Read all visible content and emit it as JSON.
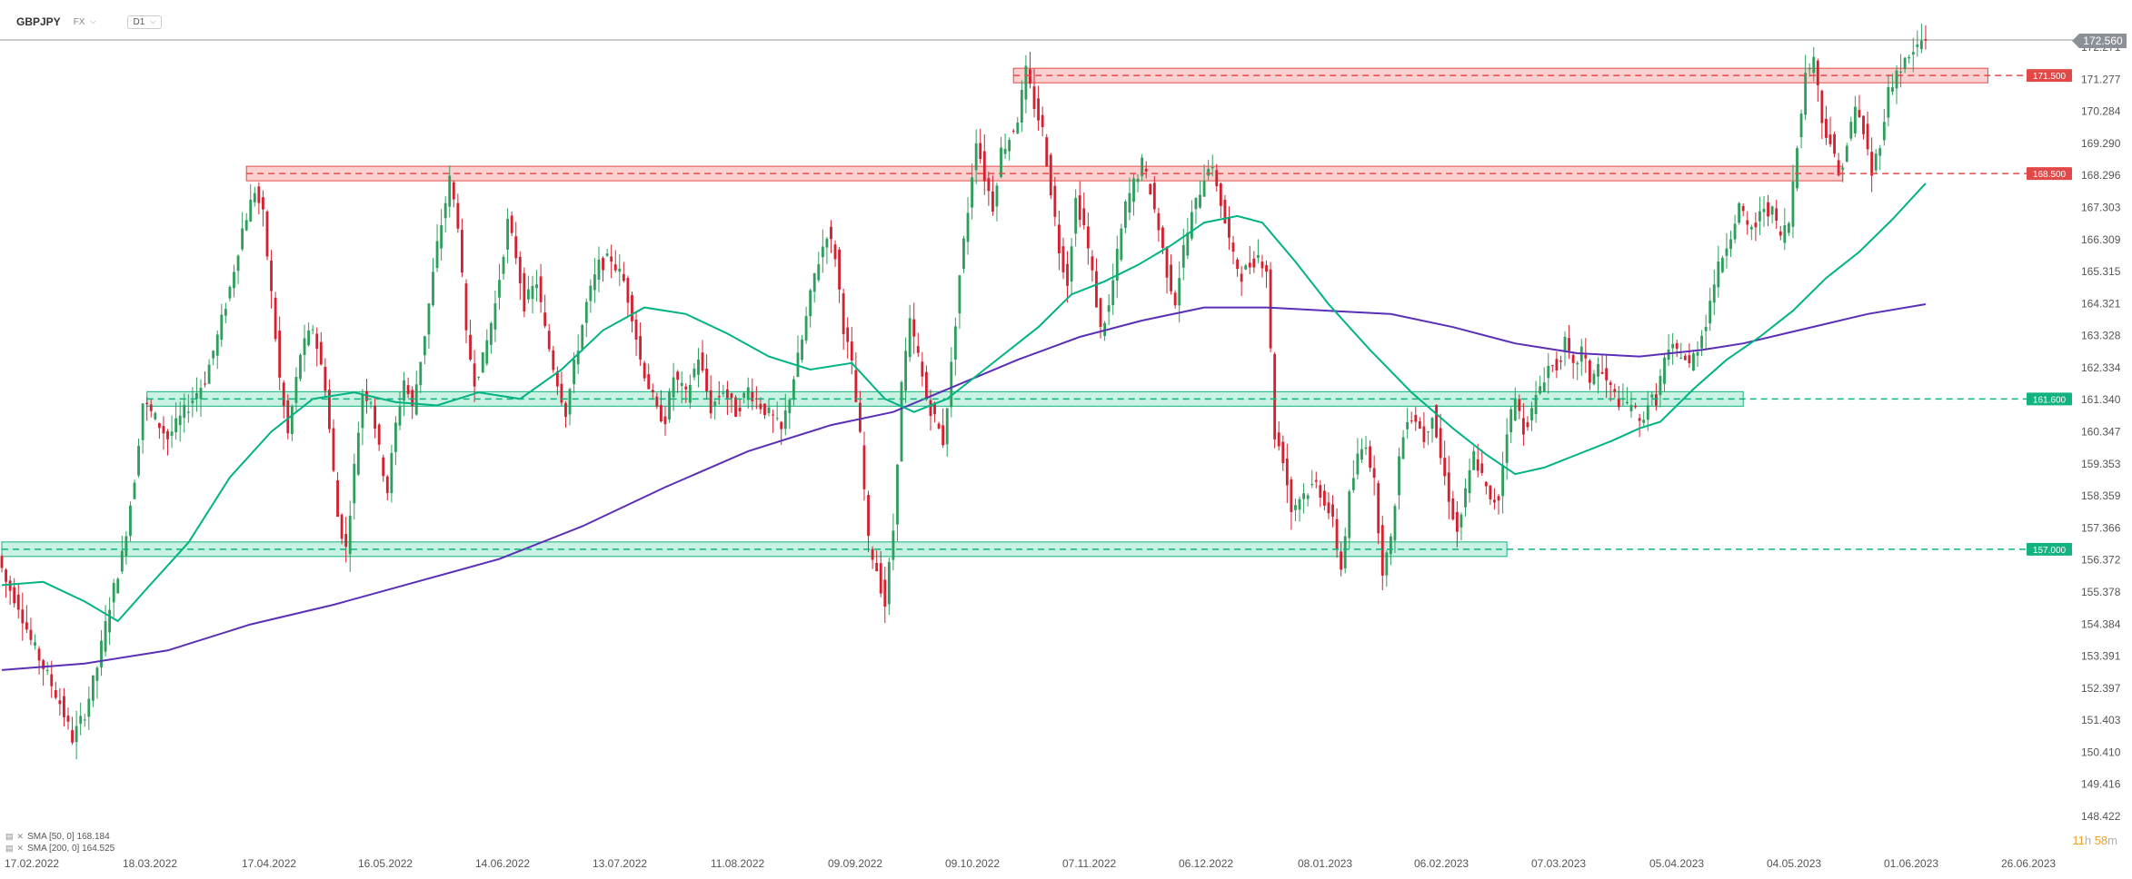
{
  "header": {
    "symbol": "GBPJPY",
    "market": "FX",
    "timeframe": "D1"
  },
  "timer": {
    "hours": "11",
    "hours_unit": "h",
    "minutes": "58",
    "minutes_unit": "m"
  },
  "legend": [
    {
      "label": "SMA [50, 0] 168.184",
      "color": "#00b383"
    },
    {
      "label": "SMA [200, 0] 164.525",
      "color": "#5b2fb5"
    }
  ],
  "colors": {
    "up": "#2e9e5c",
    "down": "#d4202f",
    "sma50": "#00b383",
    "sma200": "#5b2fb5",
    "resistance": "#e34848",
    "support": "#13b281"
  },
  "chart_data": {
    "type": "candlestick",
    "x_tick_labels": [
      "17.02.2022",
      "18.03.2022",
      "17.04.2022",
      "16.05.2022",
      "14.06.2022",
      "13.07.2022",
      "11.08.2022",
      "09.09.2022",
      "09.10.2022",
      "07.11.2022",
      "06.12.2022",
      "08.01.2023",
      "06.02.2023",
      "07.03.2023",
      "05.04.2023",
      "04.05.2023",
      "01.06.2023",
      "26.06.2023"
    ],
    "y_tick_labels": [
      "172.271",
      "171.277",
      "170.284",
      "169.290",
      "168.296",
      "167.303",
      "166.309",
      "165.315",
      "164.321",
      "163.328",
      "162.334",
      "161.340",
      "160.347",
      "159.353",
      "158.359",
      "157.366",
      "156.372",
      "155.378",
      "154.384",
      "153.391",
      "152.397",
      "151.403",
      "150.410",
      "149.416",
      "148.422"
    ],
    "ylim": [
      148.1,
      172.7
    ],
    "x_range_days": [
      0,
      505
    ],
    "current_price": "172.560",
    "levels": [
      {
        "price": 171.5,
        "label": "171.500",
        "kind": "resistance"
      },
      {
        "price": 168.5,
        "label": "168.500",
        "kind": "resistance"
      },
      {
        "price": 161.6,
        "label": "161.600",
        "kind": "support"
      },
      {
        "price": 157.0,
        "label": "157.000",
        "kind": "support"
      }
    ],
    "zones": [
      {
        "start_day": 244,
        "end_day": 479,
        "price": 171.5,
        "kind": "resistance"
      },
      {
        "start_day": 59,
        "end_day": 444,
        "price": 168.5,
        "kind": "resistance"
      },
      {
        "start_day": 35,
        "end_day": 420,
        "price": 161.6,
        "kind": "support"
      },
      {
        "start_day": 0,
        "end_day": 363,
        "price": 157.0,
        "kind": "support"
      }
    ],
    "price_path": [
      [
        0,
        156.8
      ],
      [
        2,
        156.0
      ],
      [
        5,
        155.3
      ],
      [
        8,
        154.2
      ],
      [
        11,
        153.4
      ],
      [
        15,
        152.3
      ],
      [
        18,
        151.2
      ],
      [
        21,
        152.0
      ],
      [
        24,
        153.4
      ],
      [
        27,
        155.3
      ],
      [
        30,
        156.8
      ],
      [
        33,
        159.2
      ],
      [
        35,
        161.5
      ],
      [
        38,
        161.0
      ],
      [
        41,
        160.4
      ],
      [
        44,
        161.0
      ],
      [
        47,
        161.6
      ],
      [
        50,
        162.2
      ],
      [
        53,
        163.5
      ],
      [
        56,
        165.0
      ],
      [
        59,
        166.8
      ],
      [
        62,
        168.0
      ],
      [
        64,
        167.2
      ],
      [
        66,
        164.8
      ],
      [
        68,
        162.2
      ],
      [
        70,
        160.5
      ],
      [
        73,
        163.0
      ],
      [
        76,
        163.8
      ],
      [
        79,
        162.0
      ],
      [
        82,
        158.0
      ],
      [
        84,
        157.0
      ],
      [
        86,
        159.5
      ],
      [
        88,
        161.8
      ],
      [
        90,
        161.6
      ],
      [
        92,
        160.0
      ],
      [
        94,
        158.8
      ],
      [
        96,
        160.8
      ],
      [
        98,
        162.2
      ],
      [
        100,
        161.3
      ],
      [
        103,
        163.6
      ],
      [
        106,
        166.3
      ],
      [
        109,
        168.3
      ],
      [
        111,
        167.0
      ],
      [
        113,
        163.5
      ],
      [
        115,
        162.2
      ],
      [
        117,
        162.8
      ],
      [
        120,
        164.5
      ],
      [
        123,
        167.0
      ],
      [
        125,
        166.0
      ],
      [
        127,
        164.5
      ],
      [
        130,
        165.2
      ],
      [
        132,
        163.7
      ],
      [
        134,
        162.6
      ],
      [
        137,
        161.2
      ],
      [
        139,
        162.6
      ],
      [
        142,
        164.5
      ],
      [
        145,
        165.7
      ],
      [
        148,
        165.9
      ],
      [
        151,
        165.2
      ],
      [
        153,
        164.2
      ],
      [
        155,
        162.8
      ],
      [
        157,
        162.0
      ],
      [
        159,
        161.2
      ],
      [
        161,
        161.0
      ],
      [
        163,
        162.3
      ],
      [
        166,
        161.7
      ],
      [
        169,
        162.9
      ],
      [
        172,
        161.3
      ],
      [
        175,
        161.9
      ],
      [
        178,
        161.2
      ],
      [
        181,
        161.9
      ],
      [
        184,
        161.4
      ],
      [
        187,
        161.0
      ],
      [
        189,
        160.6
      ],
      [
        191,
        161.7
      ],
      [
        194,
        163.4
      ],
      [
        197,
        165.4
      ],
      [
        200,
        166.7
      ],
      [
        202,
        166.0
      ],
      [
        204,
        163.8
      ],
      [
        206,
        162.6
      ],
      [
        208,
        160.4
      ],
      [
        210,
        157.2
      ],
      [
        212,
        156.4
      ],
      [
        214,
        155.3
      ],
      [
        216,
        157.6
      ],
      [
        218,
        162.0
      ],
      [
        220,
        163.9
      ],
      [
        222,
        162.9
      ],
      [
        224,
        161.6
      ],
      [
        226,
        161.0
      ],
      [
        228,
        160.3
      ],
      [
        230,
        162.6
      ],
      [
        232,
        165.4
      ],
      [
        234,
        167.4
      ],
      [
        236,
        169.6
      ],
      [
        238,
        168.4
      ],
      [
        240,
        167.5
      ],
      [
        242,
        169.2
      ],
      [
        244,
        169.6
      ],
      [
        246,
        170.2
      ],
      [
        248,
        171.6
      ],
      [
        250,
        170.6
      ],
      [
        252,
        169.8
      ],
      [
        254,
        168.0
      ],
      [
        256,
        166.2
      ],
      [
        258,
        165.2
      ],
      [
        260,
        167.7
      ],
      [
        262,
        166.9
      ],
      [
        264,
        165.4
      ],
      [
        266,
        163.7
      ],
      [
        268,
        164.4
      ],
      [
        270,
        166.0
      ],
      [
        272,
        167.5
      ],
      [
        274,
        168.2
      ],
      [
        276,
        168.8
      ],
      [
        278,
        168.0
      ],
      [
        280,
        166.8
      ],
      [
        282,
        165.5
      ],
      [
        284,
        164.6
      ],
      [
        286,
        166.2
      ],
      [
        288,
        167.2
      ],
      [
        290,
        168.0
      ],
      [
        292,
        168.8
      ],
      [
        294,
        168.2
      ],
      [
        296,
        167.0
      ],
      [
        298,
        165.9
      ],
      [
        300,
        165.4
      ],
      [
        302,
        165.7
      ],
      [
        304,
        166.0
      ],
      [
        306,
        165.6
      ],
      [
        308,
        160.5
      ],
      [
        310,
        159.8
      ],
      [
        312,
        158.2
      ],
      [
        314,
        158.6
      ],
      [
        316,
        158.8
      ],
      [
        318,
        159.0
      ],
      [
        320,
        158.5
      ],
      [
        322,
        157.8
      ],
      [
        324,
        156.4
      ],
      [
        326,
        158.6
      ],
      [
        328,
        159.8
      ],
      [
        330,
        160.3
      ],
      [
        332,
        159.0
      ],
      [
        334,
        156.4
      ],
      [
        336,
        157.2
      ],
      [
        338,
        159.8
      ],
      [
        340,
        161.1
      ],
      [
        342,
        161.0
      ],
      [
        344,
        160.4
      ],
      [
        346,
        161.2
      ],
      [
        348,
        159.8
      ],
      [
        350,
        158.6
      ],
      [
        352,
        157.5
      ],
      [
        354,
        158.7
      ],
      [
        356,
        159.9
      ],
      [
        358,
        159.2
      ],
      [
        360,
        158.4
      ],
      [
        362,
        158.6
      ],
      [
        364,
        160.7
      ],
      [
        366,
        161.6
      ],
      [
        368,
        160.7
      ],
      [
        370,
        161.2
      ],
      [
        372,
        162.0
      ],
      [
        374,
        162.6
      ],
      [
        376,
        162.6
      ],
      [
        378,
        163.3
      ],
      [
        380,
        162.5
      ],
      [
        382,
        163.1
      ],
      [
        384,
        162.2
      ],
      [
        386,
        162.6
      ],
      [
        388,
        162.1
      ],
      [
        390,
        161.7
      ],
      [
        392,
        161.4
      ],
      [
        394,
        161.5
      ],
      [
        396,
        160.8
      ],
      [
        398,
        161.5
      ],
      [
        400,
        161.6
      ],
      [
        402,
        162.8
      ],
      [
        404,
        163.1
      ],
      [
        406,
        163.0
      ],
      [
        408,
        162.6
      ],
      [
        410,
        163.2
      ],
      [
        412,
        164.0
      ],
      [
        414,
        165.2
      ],
      [
        416,
        166.0
      ],
      [
        418,
        166.7
      ],
      [
        420,
        167.5
      ],
      [
        422,
        166.8
      ],
      [
        424,
        166.9
      ],
      [
        426,
        167.5
      ],
      [
        428,
        167.3
      ],
      [
        430,
        166.6
      ],
      [
        432,
        167.0
      ],
      [
        434,
        169.5
      ],
      [
        436,
        171.5
      ],
      [
        438,
        172.1
      ],
      [
        440,
        170.1
      ],
      [
        442,
        169.5
      ],
      [
        444,
        168.4
      ],
      [
        446,
        169.4
      ],
      [
        448,
        170.5
      ],
      [
        450,
        169.8
      ],
      [
        452,
        168.5
      ],
      [
        454,
        169.5
      ],
      [
        456,
        171.0
      ],
      [
        458,
        171.6
      ],
      [
        460,
        171.9
      ],
      [
        462,
        172.2
      ],
      [
        464,
        172.56
      ]
    ],
    "sma50_points": [
      [
        0,
        155.9
      ],
      [
        10,
        156.0
      ],
      [
        20,
        155.4
      ],
      [
        28,
        154.8
      ],
      [
        35,
        155.8
      ],
      [
        45,
        157.2
      ],
      [
        55,
        159.2
      ],
      [
        65,
        160.6
      ],
      [
        75,
        161.6
      ],
      [
        85,
        161.8
      ],
      [
        95,
        161.5
      ],
      [
        105,
        161.4
      ],
      [
        115,
        161.8
      ],
      [
        125,
        161.6
      ],
      [
        135,
        162.5
      ],
      [
        145,
        163.7
      ],
      [
        155,
        164.4
      ],
      [
        165,
        164.2
      ],
      [
        175,
        163.6
      ],
      [
        185,
        162.9
      ],
      [
        195,
        162.5
      ],
      [
        205,
        162.7
      ],
      [
        213,
        161.6
      ],
      [
        220,
        161.2
      ],
      [
        228,
        161.6
      ],
      [
        235,
        162.3
      ],
      [
        242,
        163.0
      ],
      [
        250,
        163.8
      ],
      [
        258,
        164.8
      ],
      [
        266,
        165.2
      ],
      [
        274,
        165.7
      ],
      [
        282,
        166.3
      ],
      [
        290,
        167.0
      ],
      [
        298,
        167.2
      ],
      [
        304,
        167.0
      ],
      [
        312,
        165.8
      ],
      [
        320,
        164.5
      ],
      [
        330,
        163.1
      ],
      [
        340,
        161.8
      ],
      [
        350,
        160.7
      ],
      [
        358,
        159.9
      ],
      [
        365,
        159.3
      ],
      [
        372,
        159.5
      ],
      [
        380,
        159.9
      ],
      [
        388,
        160.3
      ],
      [
        395,
        160.7
      ],
      [
        400,
        160.9
      ],
      [
        408,
        161.9
      ],
      [
        416,
        162.8
      ],
      [
        424,
        163.5
      ],
      [
        432,
        164.3
      ],
      [
        440,
        165.3
      ],
      [
        448,
        166.1
      ],
      [
        456,
        167.1
      ],
      [
        464,
        168.2
      ]
    ],
    "sma200_points": [
      [
        0,
        153.3
      ],
      [
        20,
        153.5
      ],
      [
        40,
        153.9
      ],
      [
        60,
        154.7
      ],
      [
        80,
        155.3
      ],
      [
        100,
        156.0
      ],
      [
        120,
        156.7
      ],
      [
        140,
        157.7
      ],
      [
        160,
        158.9
      ],
      [
        180,
        160.0
      ],
      [
        200,
        160.8
      ],
      [
        215,
        161.2
      ],
      [
        230,
        162.0
      ],
      [
        245,
        162.8
      ],
      [
        260,
        163.5
      ],
      [
        275,
        164.0
      ],
      [
        290,
        164.4
      ],
      [
        305,
        164.4
      ],
      [
        320,
        164.3
      ],
      [
        335,
        164.2
      ],
      [
        350,
        163.8
      ],
      [
        365,
        163.3
      ],
      [
        380,
        163.0
      ],
      [
        395,
        162.9
      ],
      [
        410,
        163.1
      ],
      [
        420,
        163.3
      ],
      [
        430,
        163.6
      ],
      [
        440,
        163.9
      ],
      [
        450,
        164.2
      ],
      [
        464,
        164.5
      ]
    ]
  }
}
